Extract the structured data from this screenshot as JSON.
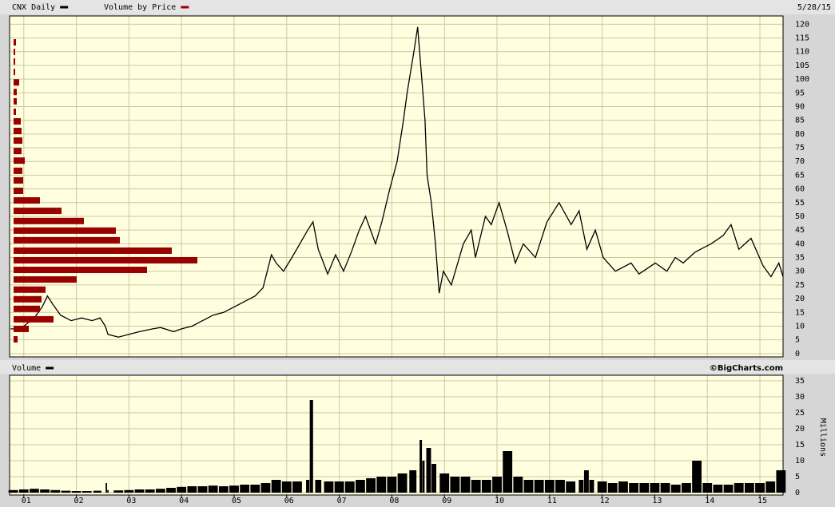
{
  "header": {
    "date": "5/28/15",
    "credit": "©BigCharts.com"
  },
  "chart_data": [
    {
      "type": "line",
      "xlim": [
        2000.73,
        2015.44
      ],
      "ylim": [
        -1.2,
        123
      ],
      "yticks": [
        0,
        5,
        10,
        15,
        20,
        25,
        30,
        35,
        40,
        45,
        50,
        55,
        60,
        65,
        70,
        75,
        80,
        85,
        90,
        95,
        100,
        105,
        110,
        115,
        120
      ],
      "grid": true,
      "series": [
        {
          "name": "CNX Daily",
          "color": "#000000",
          "x": [
            2000.75,
            2000.9,
            2001.0,
            2001.2,
            2001.35,
            2001.45,
            2001.55,
            2001.7,
            2001.9,
            2002.1,
            2002.3,
            2002.45,
            2002.55,
            2002.6,
            2002.8,
            2003.0,
            2003.2,
            2003.45,
            2003.6,
            2003.85,
            2004.0,
            2004.2,
            2004.4,
            2004.6,
            2004.8,
            2005.0,
            2005.2,
            2005.4,
            2005.55,
            2005.71,
            2005.8,
            2005.94,
            2006.1,
            2006.25,
            2006.4,
            2006.5,
            2006.6,
            2006.7,
            2006.78,
            2006.93,
            2007.08,
            2007.23,
            2007.38,
            2007.5,
            2007.69,
            2007.81,
            2007.96,
            2008.1,
            2008.22,
            2008.29,
            2008.42,
            2008.49,
            2008.57,
            2008.63,
            2008.67,
            2008.75,
            2008.83,
            2008.9,
            2008.98,
            2009.13,
            2009.36,
            2009.51,
            2009.59,
            2009.78,
            2009.89,
            2010.04,
            2010.19,
            2010.35,
            2010.5,
            2010.73,
            2010.95,
            2011.18,
            2011.41,
            2011.56,
            2011.71,
            2011.87,
            2012.02,
            2012.25,
            2012.55,
            2012.7,
            2013.01,
            2013.23,
            2013.39,
            2013.54,
            2013.77,
            2014.07,
            2014.3,
            2014.45,
            2014.6,
            2014.83,
            2015.06,
            2015.21,
            2015.36,
            2015.44
          ],
          "values": [
            9,
            9,
            10,
            13,
            17,
            21,
            18,
            14,
            12,
            13,
            12,
            13,
            10,
            7,
            6,
            7,
            8,
            9,
            9.5,
            8,
            9,
            10,
            12,
            14,
            15,
            17,
            19,
            21,
            24,
            36,
            33,
            30,
            35,
            40,
            45,
            48,
            38,
            33,
            29,
            36,
            30,
            37,
            45,
            50,
            40,
            48,
            60,
            70,
            85,
            95,
            110,
            119,
            100,
            85,
            65,
            55,
            40,
            22,
            30,
            25,
            40,
            45,
            35,
            50,
            47,
            55,
            45,
            33,
            40,
            35,
            48,
            55,
            47,
            52,
            38,
            45,
            35,
            30,
            33,
            29,
            33,
            30,
            35,
            33,
            37,
            40,
            43,
            47,
            38,
            42,
            32,
            28,
            33,
            28
          ]
        }
      ]
    },
    {
      "type": "hbar",
      "xlim": [
        0,
        968
      ],
      "series": [
        {
          "name": "Volume by Price",
          "color": "#990000",
          "y": [
            113.4,
            109.9,
            106.4,
            102.6,
            98.8,
            95.3,
            91.9,
            88.1,
            84.6,
            81.1,
            77.6,
            73.8,
            70.3,
            66.6,
            63.1,
            59.3,
            55.8,
            52.0,
            48.3,
            44.8,
            41.3,
            37.5,
            34.0,
            30.5,
            27.0,
            23.3,
            19.8,
            16.3,
            12.5,
            9.0,
            5.2
          ],
          "values": [
            3,
            2,
            2,
            2,
            7,
            4,
            4,
            3,
            9,
            10,
            11,
            10,
            14,
            11,
            12,
            12,
            33,
            60,
            88,
            128,
            133,
            198,
            230,
            167,
            79,
            40,
            35,
            33,
            50,
            19,
            5
          ]
        }
      ]
    },
    {
      "type": "bar",
      "xlim": [
        2000.73,
        2015.44
      ],
      "ylim": [
        -0.75,
        36.75
      ],
      "yticks": [
        0,
        5,
        10,
        15,
        20,
        25,
        30,
        35
      ],
      "y_label": "Millions",
      "xticks": [
        {
          "value": 2001,
          "label": "01"
        },
        {
          "value": 2002,
          "label": "02"
        },
        {
          "value": 2003,
          "label": "03"
        },
        {
          "value": 2004,
          "label": "04"
        },
        {
          "value": 2005,
          "label": "05"
        },
        {
          "value": 2006,
          "label": "06"
        },
        {
          "value": 2007,
          "label": "07"
        },
        {
          "value": 2008,
          "label": "08"
        },
        {
          "value": 2009,
          "label": "09"
        },
        {
          "value": 2010,
          "label": "10"
        },
        {
          "value": 2011,
          "label": "11"
        },
        {
          "value": 2012,
          "label": "12"
        },
        {
          "value": 2013,
          "label": "13"
        },
        {
          "value": 2014,
          "label": "14"
        },
        {
          "value": 2015,
          "label": "15"
        }
      ],
      "grid": true,
      "series": [
        {
          "name": "Volume",
          "color": "#000000",
          "x": [
            2000.8,
            2001.0,
            2001.2,
            2001.4,
            2001.6,
            2001.8,
            2002.0,
            2002.2,
            2002.4,
            2002.57,
            2002.6,
            2002.8,
            2003.0,
            2003.2,
            2003.4,
            2003.6,
            2003.8,
            2004.0,
            2004.2,
            2004.4,
            2004.6,
            2004.8,
            2005.0,
            2005.2,
            2005.4,
            2005.6,
            2005.8,
            2006.0,
            2006.2,
            2006.4,
            2006.47,
            2006.6,
            2006.8,
            2007.0,
            2007.2,
            2007.4,
            2007.6,
            2007.8,
            2008.0,
            2008.2,
            2008.4,
            2008.55,
            2008.6,
            2008.7,
            2008.8,
            2009.0,
            2009.2,
            2009.4,
            2009.6,
            2009.8,
            2010.0,
            2010.2,
            2010.4,
            2010.6,
            2010.8,
            2011.0,
            2011.2,
            2011.4,
            2011.6,
            2011.7,
            2011.8,
            2012.0,
            2012.2,
            2012.4,
            2012.6,
            2012.8,
            2013.0,
            2013.2,
            2013.4,
            2013.6,
            2013.8,
            2014.0,
            2014.2,
            2014.4,
            2014.6,
            2014.8,
            2015.0,
            2015.2,
            2015.4
          ],
          "values": [
            0.8,
            1,
            1.2,
            1,
            0.8,
            0.6,
            0.5,
            0.5,
            0.6,
            3,
            0.8,
            0.7,
            0.8,
            1,
            1,
            1.2,
            1.5,
            1.8,
            2,
            2,
            2.2,
            2,
            2.2,
            2.5,
            2.5,
            3,
            4,
            3.5,
            3.5,
            4,
            29,
            4,
            3.5,
            3.5,
            3.5,
            4,
            4.5,
            5,
            5,
            6,
            7,
            16.5,
            10,
            14,
            9,
            6,
            5,
            5,
            4,
            4,
            5,
            13,
            5,
            4,
            4,
            4,
            4,
            3.5,
            4,
            7,
            4,
            3.5,
            3,
            3.5,
            3,
            3,
            3,
            3,
            2.5,
            3,
            10,
            3,
            2.5,
            2.5,
            3,
            3,
            3,
            3.5,
            7
          ]
        }
      ]
    }
  ]
}
